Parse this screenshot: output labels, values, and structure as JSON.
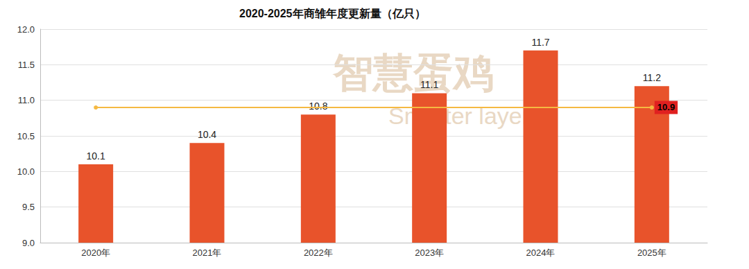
{
  "chart_data": {
    "type": "bar",
    "title": "2020-2025年商雏年度更新量（亿只）",
    "categories": [
      "2020年",
      "2021年",
      "2022年",
      "2023年",
      "2024年",
      "2025年"
    ],
    "values": [
      10.1,
      10.4,
      10.8,
      11.1,
      11.7,
      11.2
    ],
    "color": "#e8532b",
    "data_labels": true,
    "average_line": {
      "value": 10.9,
      "color": "#f5b942",
      "label_color": "#e02020"
    },
    "watermark": {
      "text": "智慧蛋鸡",
      "subtext": "Smarter layer"
    },
    "ylim": [
      9,
      12
    ],
    "yticks": [
      {
        "value": 9,
        "label": "9.0"
      },
      {
        "value": 9.5,
        "label": "9.5"
      },
      {
        "value": 10,
        "label": "10.0"
      },
      {
        "value": 10.5,
        "label": "10.5"
      },
      {
        "value": 11,
        "label": "11.0"
      },
      {
        "value": 11.5,
        "label": "11.5"
      },
      {
        "value": 12,
        "label": "12.0"
      }
    ],
    "grid": true
  }
}
